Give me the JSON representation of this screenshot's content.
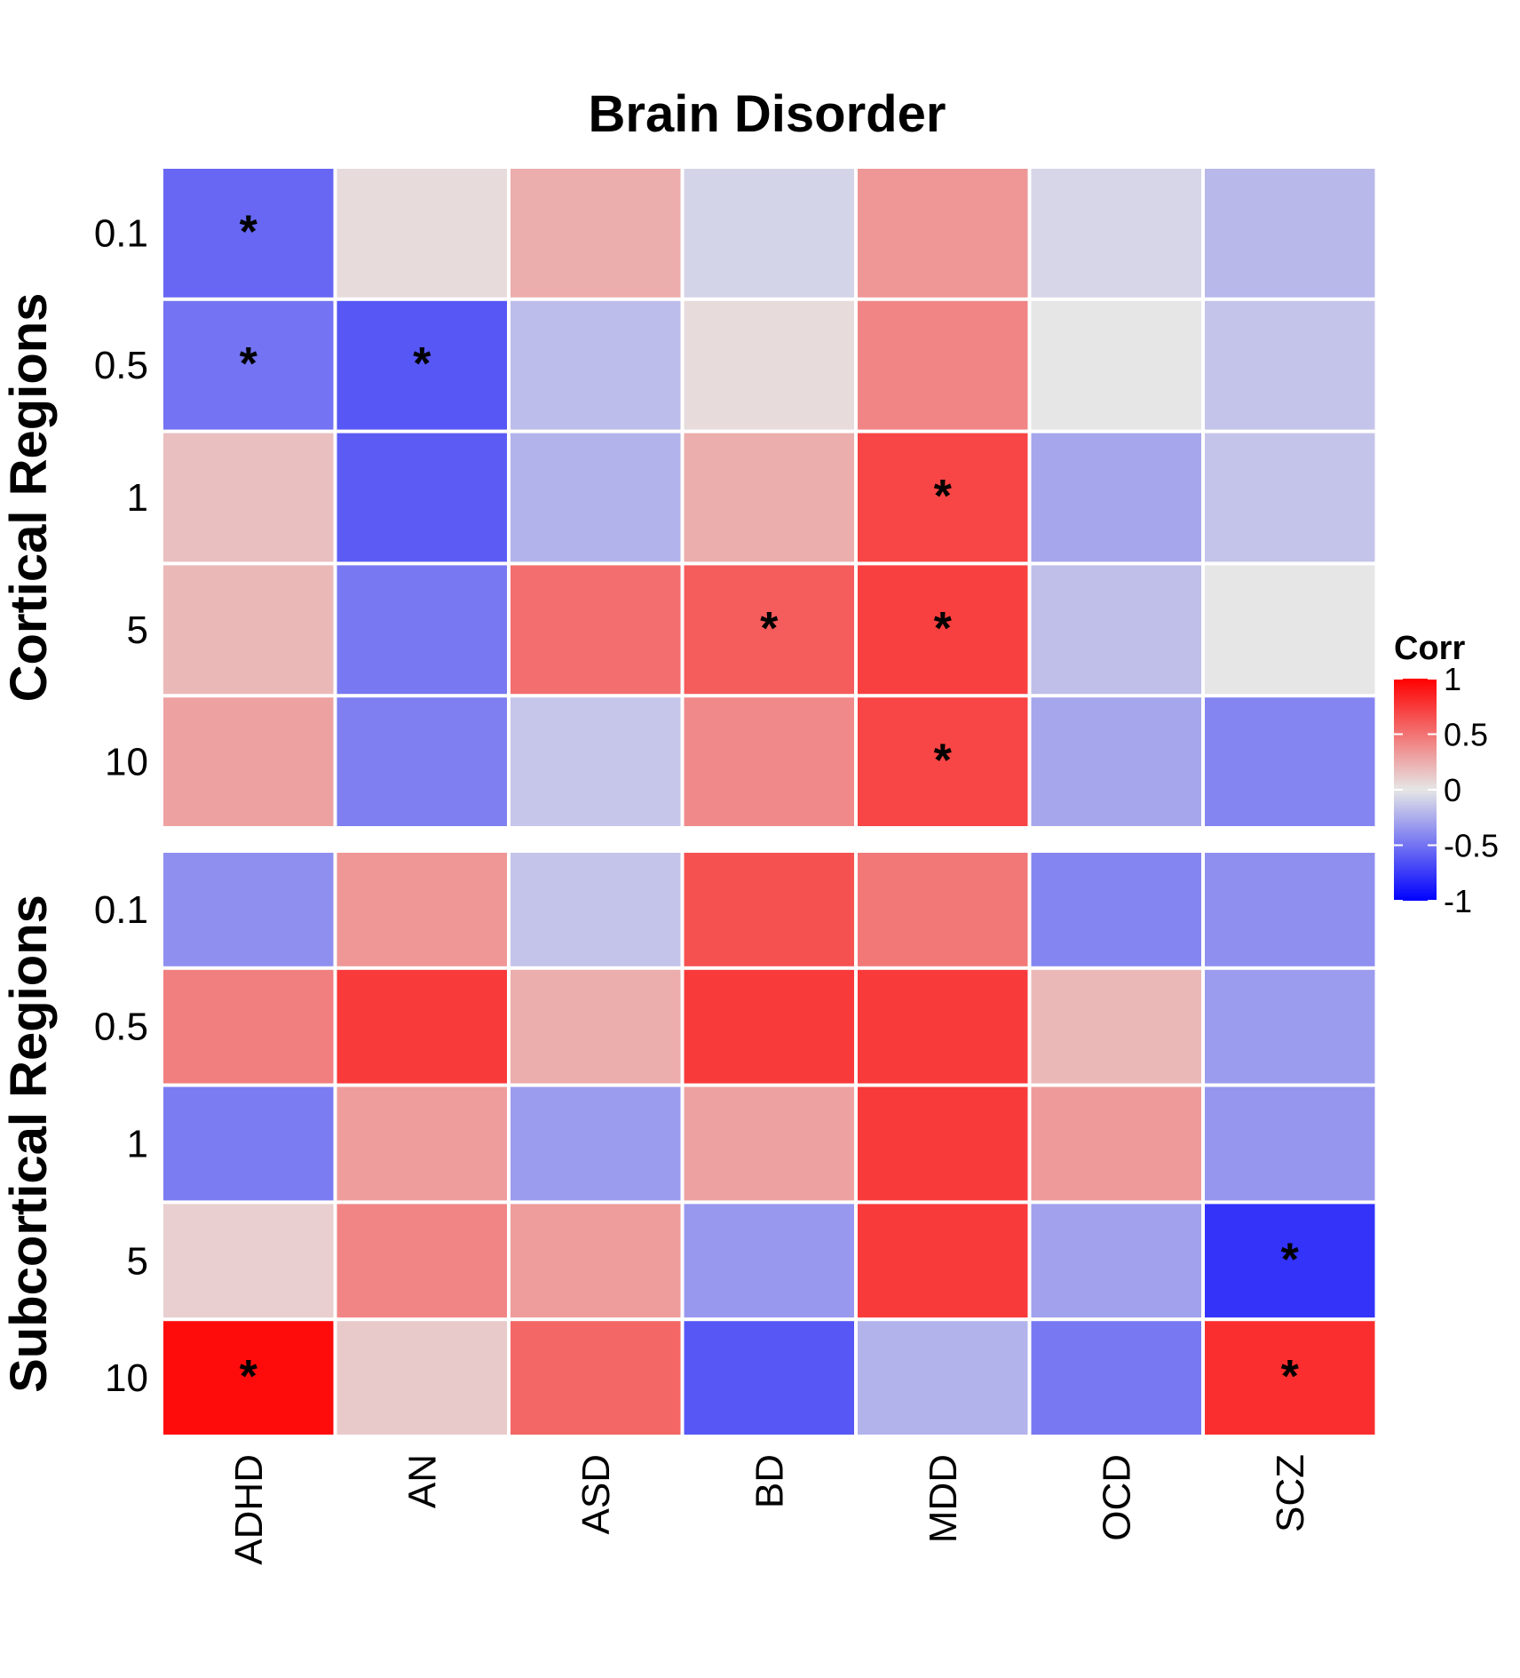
{
  "chart_data": {
    "type": "heatmap",
    "title": "Brain Disorder",
    "categories": [
      "ADHD",
      "AN",
      "ASD",
      "BD",
      "MDD",
      "OCD",
      "SCZ"
    ],
    "panels": [
      {
        "name": "Cortical Regions",
        "rows": [
          "0.1",
          "0.5",
          "1",
          "5",
          "10"
        ],
        "values": [
          [
            -0.55,
            0.05,
            0.25,
            -0.08,
            0.35,
            -0.07,
            -0.2
          ],
          [
            -0.5,
            -0.62,
            -0.18,
            0.05,
            0.42,
            0.0,
            -0.15
          ],
          [
            0.17,
            -0.6,
            -0.22,
            0.25,
            0.7,
            -0.28,
            -0.15
          ],
          [
            0.2,
            -0.48,
            0.52,
            0.6,
            0.72,
            -0.17,
            0.0
          ],
          [
            0.3,
            -0.45,
            -0.14,
            0.4,
            0.7,
            -0.28,
            -0.42
          ]
        ],
        "significant": [
          [
            true,
            false,
            false,
            false,
            false,
            false,
            false
          ],
          [
            true,
            true,
            false,
            false,
            false,
            false,
            false
          ],
          [
            false,
            false,
            false,
            false,
            true,
            false,
            false
          ],
          [
            false,
            false,
            false,
            true,
            true,
            false,
            false
          ],
          [
            false,
            false,
            false,
            false,
            true,
            false,
            false
          ]
        ]
      },
      {
        "name": "Subcortical Regions",
        "rows": [
          "0.1",
          "0.5",
          "1",
          "5",
          "10"
        ],
        "values": [
          [
            -0.38,
            0.35,
            -0.15,
            0.65,
            0.48,
            -0.42,
            -0.38
          ],
          [
            0.45,
            0.75,
            0.25,
            0.75,
            0.75,
            0.2,
            -0.32
          ],
          [
            -0.46,
            0.32,
            -0.32,
            0.3,
            0.75,
            0.33,
            -0.35
          ],
          [
            0.1,
            0.42,
            0.32,
            -0.34,
            0.75,
            -0.3,
            -0.78
          ],
          [
            0.95,
            0.12,
            0.55,
            -0.62,
            -0.22,
            -0.48,
            0.8
          ]
        ],
        "significant": [
          [
            false,
            false,
            false,
            false,
            false,
            false,
            false
          ],
          [
            false,
            false,
            false,
            false,
            false,
            false,
            false
          ],
          [
            false,
            false,
            false,
            false,
            false,
            false,
            false
          ],
          [
            false,
            false,
            false,
            false,
            false,
            false,
            true
          ],
          [
            true,
            false,
            false,
            false,
            false,
            false,
            true
          ]
        ]
      }
    ],
    "significance_marker": "*",
    "legend": {
      "title": "Corr",
      "ticks": [
        "1",
        "0.5",
        "0",
        "-0.5",
        "-1"
      ],
      "tick_values": [
        1,
        0.5,
        0,
        -0.5,
        -1
      ],
      "range": [
        -1,
        1
      ],
      "colors": {
        "low": "#0000ff",
        "mid": "#e6e6e6",
        "high": "#ff0000"
      },
      "position": "right"
    }
  }
}
